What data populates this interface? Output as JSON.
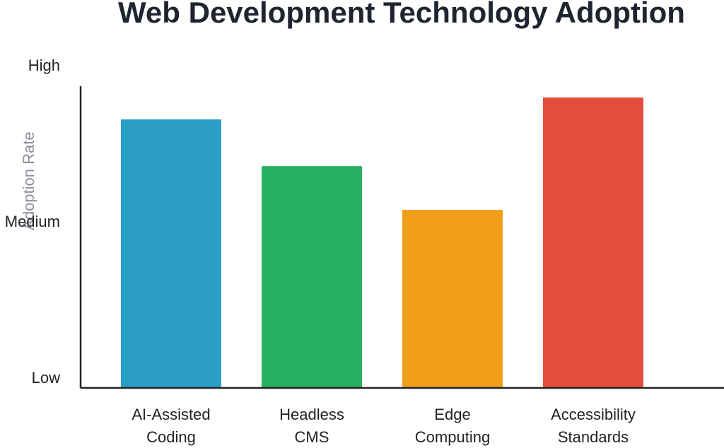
{
  "chart_data": {
    "type": "bar",
    "title": "Web Development Technology Adoption",
    "xlabel": "",
    "ylabel": "Adoption Rate",
    "y_ticks": [
      {
        "label": "Low",
        "value": 0
      },
      {
        "label": "Medium",
        "value": 50
      },
      {
        "label": "High",
        "value": 100
      }
    ],
    "ylim": [
      0,
      100
    ],
    "categories": [
      [
        "AI-Assisted",
        "Coding"
      ],
      [
        "Headless",
        "CMS"
      ],
      [
        "Edge",
        "Computing"
      ],
      [
        "Accessibility",
        "Standards"
      ]
    ],
    "values": [
      86,
      71,
      57,
      93
    ],
    "colors": [
      "#2b9ec6",
      "#28b061",
      "#f19e19",
      "#e44d3c"
    ],
    "grid": false,
    "legend": "none"
  }
}
